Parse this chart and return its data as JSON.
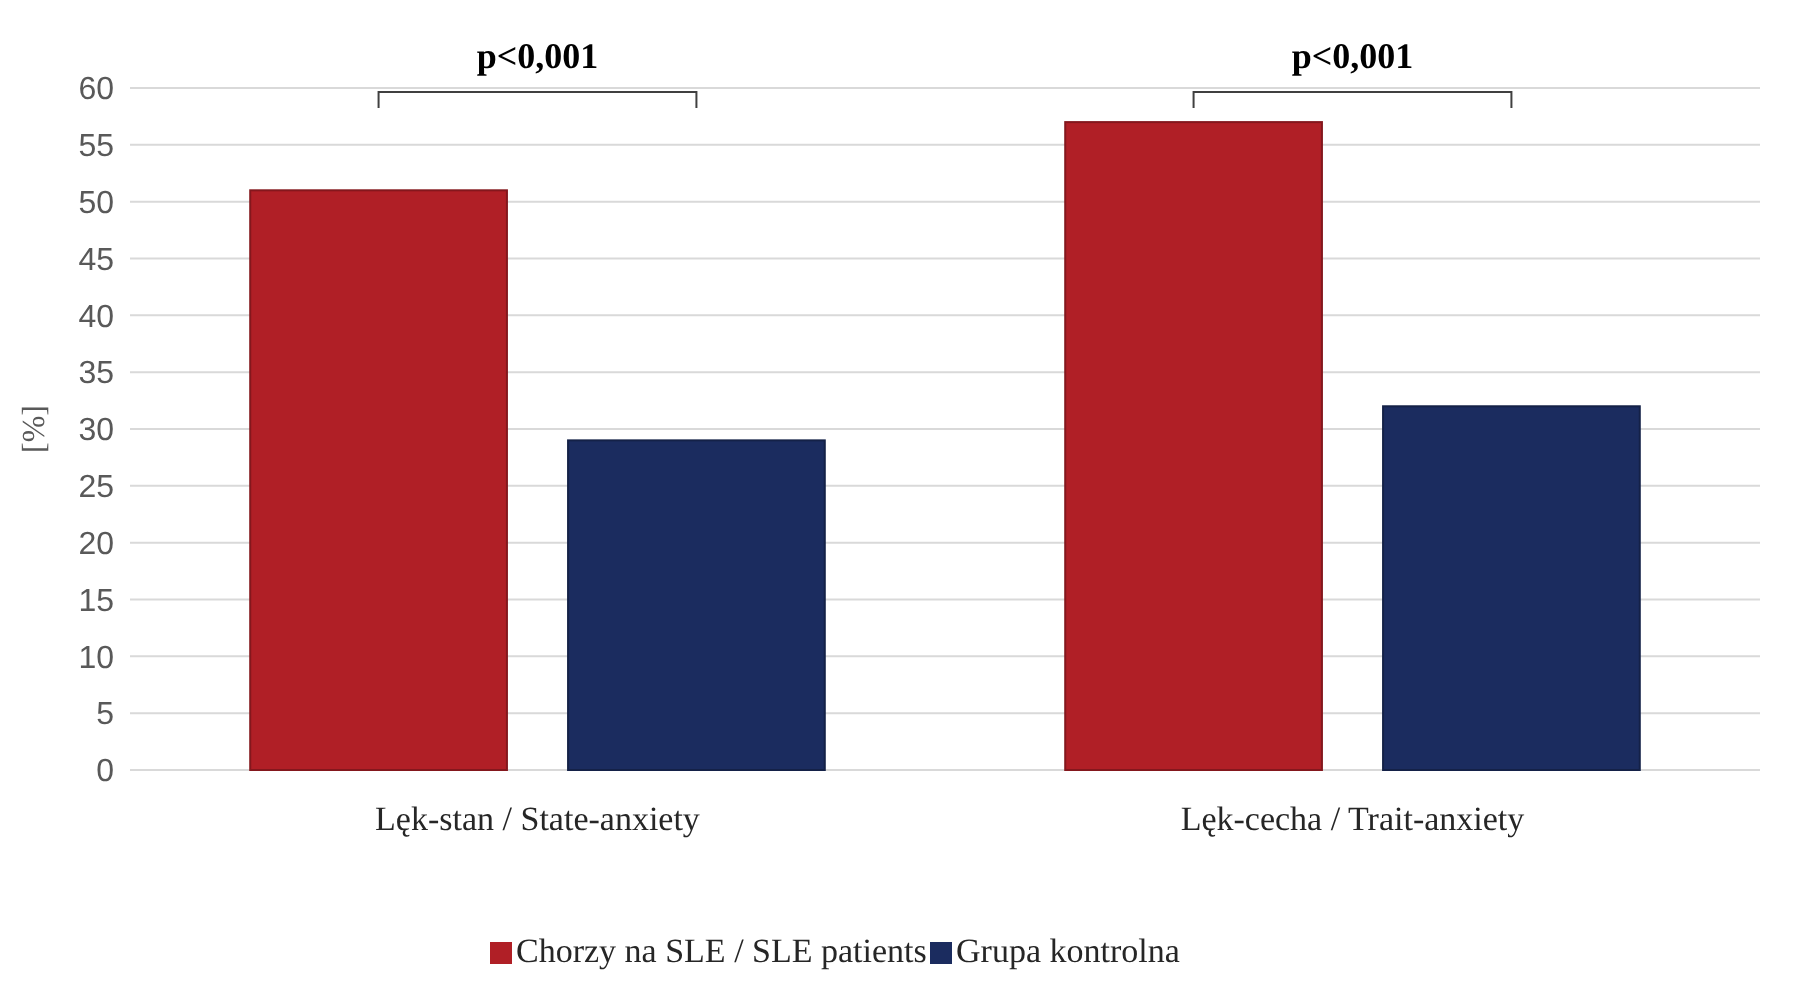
{
  "chart_data": {
    "type": "bar",
    "ylabel": "[%]",
    "categories": [
      "Lęk-stan / State-anxiety",
      "Lęk-cecha / Trait-anxiety"
    ],
    "series": [
      {
        "name": "Chorzy na SLE / SLE patients",
        "color": "#b01f26",
        "values": [
          51,
          57
        ]
      },
      {
        "name": "Grupa kontrolna",
        "color": "#1b2c5f",
        "values": [
          29,
          32
        ]
      }
    ],
    "ylim": [
      0,
      60
    ],
    "yticks": [
      0,
      5,
      10,
      15,
      20,
      25,
      30,
      35,
      40,
      45,
      50,
      55,
      60
    ],
    "grid": "y",
    "legend": "bottom",
    "annotations": [
      "p<0,001",
      "p<0,001"
    ]
  }
}
